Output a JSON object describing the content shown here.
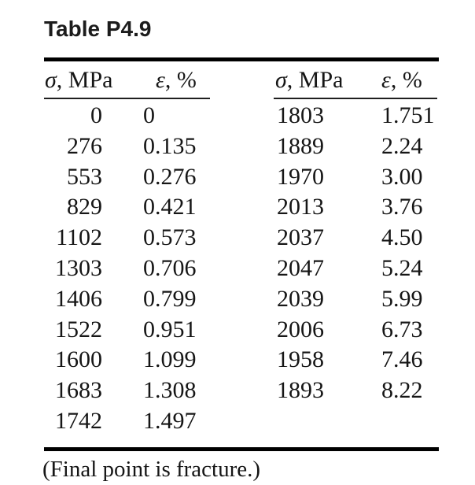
{
  "page": {
    "background": "#ffffff",
    "text_color": "#161616",
    "rule_color": "#000000"
  },
  "title": "Table P4.9",
  "table": {
    "column_headers": {
      "stress_symbol": "σ",
      "stress_unit": ", MPa",
      "strain_symbol": "ε",
      "strain_unit": ", %"
    },
    "rows": [
      [
        "0",
        "0",
        "1803",
        "1.751"
      ],
      [
        "276",
        "0.135",
        "1889",
        "2.24"
      ],
      [
        "553",
        "0.276",
        "1970",
        "3.00"
      ],
      [
        "829",
        "0.421",
        "2013",
        "3.76"
      ],
      [
        "1102",
        "0.573",
        "2037",
        "4.50"
      ],
      [
        "1303",
        "0.706",
        "2047",
        "5.24"
      ],
      [
        "1406",
        "0.799",
        "2039",
        "5.99"
      ],
      [
        "1522",
        "0.951",
        "2006",
        "6.73"
      ],
      [
        "1600",
        "1.099",
        "1958",
        "7.46"
      ],
      [
        "1683",
        "1.308",
        "1893",
        "8.22"
      ],
      [
        "1742",
        "1.497",
        "",
        ""
      ]
    ]
  },
  "footnote": "(Final point is fracture.)"
}
